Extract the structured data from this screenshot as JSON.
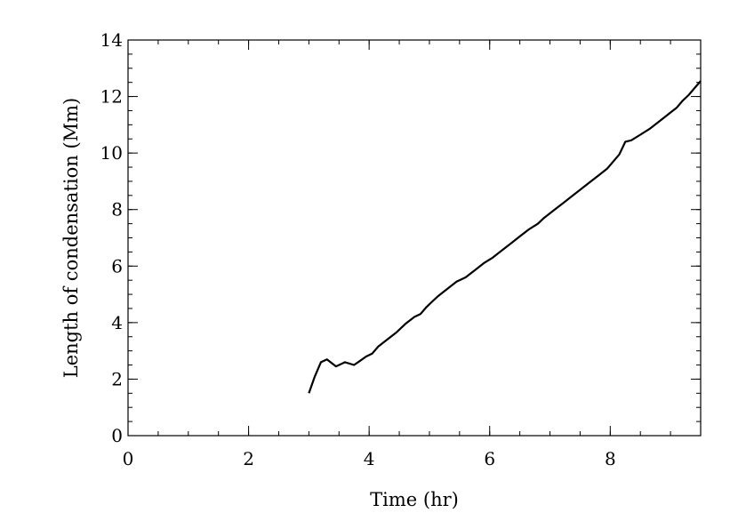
{
  "chart_data": {
    "type": "line",
    "title": "",
    "xlabel": "Time (hr)",
    "ylabel": "Length of condensation (Mm)",
    "xlim": [
      0,
      9.5
    ],
    "ylim": [
      0,
      14
    ],
    "x_ticks": [
      0,
      2,
      4,
      6,
      8
    ],
    "y_ticks": [
      0,
      2,
      4,
      6,
      8,
      10,
      12,
      14
    ],
    "x_tick_labels": [
      "0",
      "2",
      "4",
      "6",
      "8"
    ],
    "y_tick_labels": [
      "0",
      "2",
      "4",
      "6",
      "8",
      "10",
      "12",
      "14"
    ],
    "x_minor_step": 0.5,
    "y_minor_step": 0.5,
    "grid": false,
    "legend": "none",
    "series": [
      {
        "color": "#000000",
        "x": [
          3.0,
          3.1,
          3.2,
          3.3,
          3.45,
          3.6,
          3.75,
          3.85,
          3.95,
          4.05,
          4.15,
          4.3,
          4.45,
          4.6,
          4.75,
          4.85,
          4.95,
          5.05,
          5.15,
          5.3,
          5.45,
          5.6,
          5.75,
          5.9,
          6.05,
          6.2,
          6.35,
          6.5,
          6.65,
          6.8,
          6.9,
          7.05,
          7.2,
          7.35,
          7.5,
          7.65,
          7.8,
          7.95,
          8.05,
          8.15,
          8.25,
          8.35,
          8.5,
          8.65,
          8.8,
          8.95,
          9.1,
          9.2,
          9.3,
          9.4,
          9.5
        ],
        "y": [
          1.5,
          2.1,
          2.6,
          2.7,
          2.45,
          2.6,
          2.5,
          2.65,
          2.8,
          2.9,
          3.15,
          3.4,
          3.65,
          3.95,
          4.2,
          4.3,
          4.55,
          4.75,
          4.95,
          5.2,
          5.45,
          5.6,
          5.85,
          6.1,
          6.3,
          6.55,
          6.8,
          7.05,
          7.3,
          7.5,
          7.7,
          7.95,
          8.2,
          8.45,
          8.7,
          8.95,
          9.2,
          9.45,
          9.7,
          9.95,
          10.4,
          10.45,
          10.65,
          10.85,
          11.1,
          11.35,
          11.6,
          11.85,
          12.05,
          12.3,
          12.55
        ]
      }
    ]
  }
}
